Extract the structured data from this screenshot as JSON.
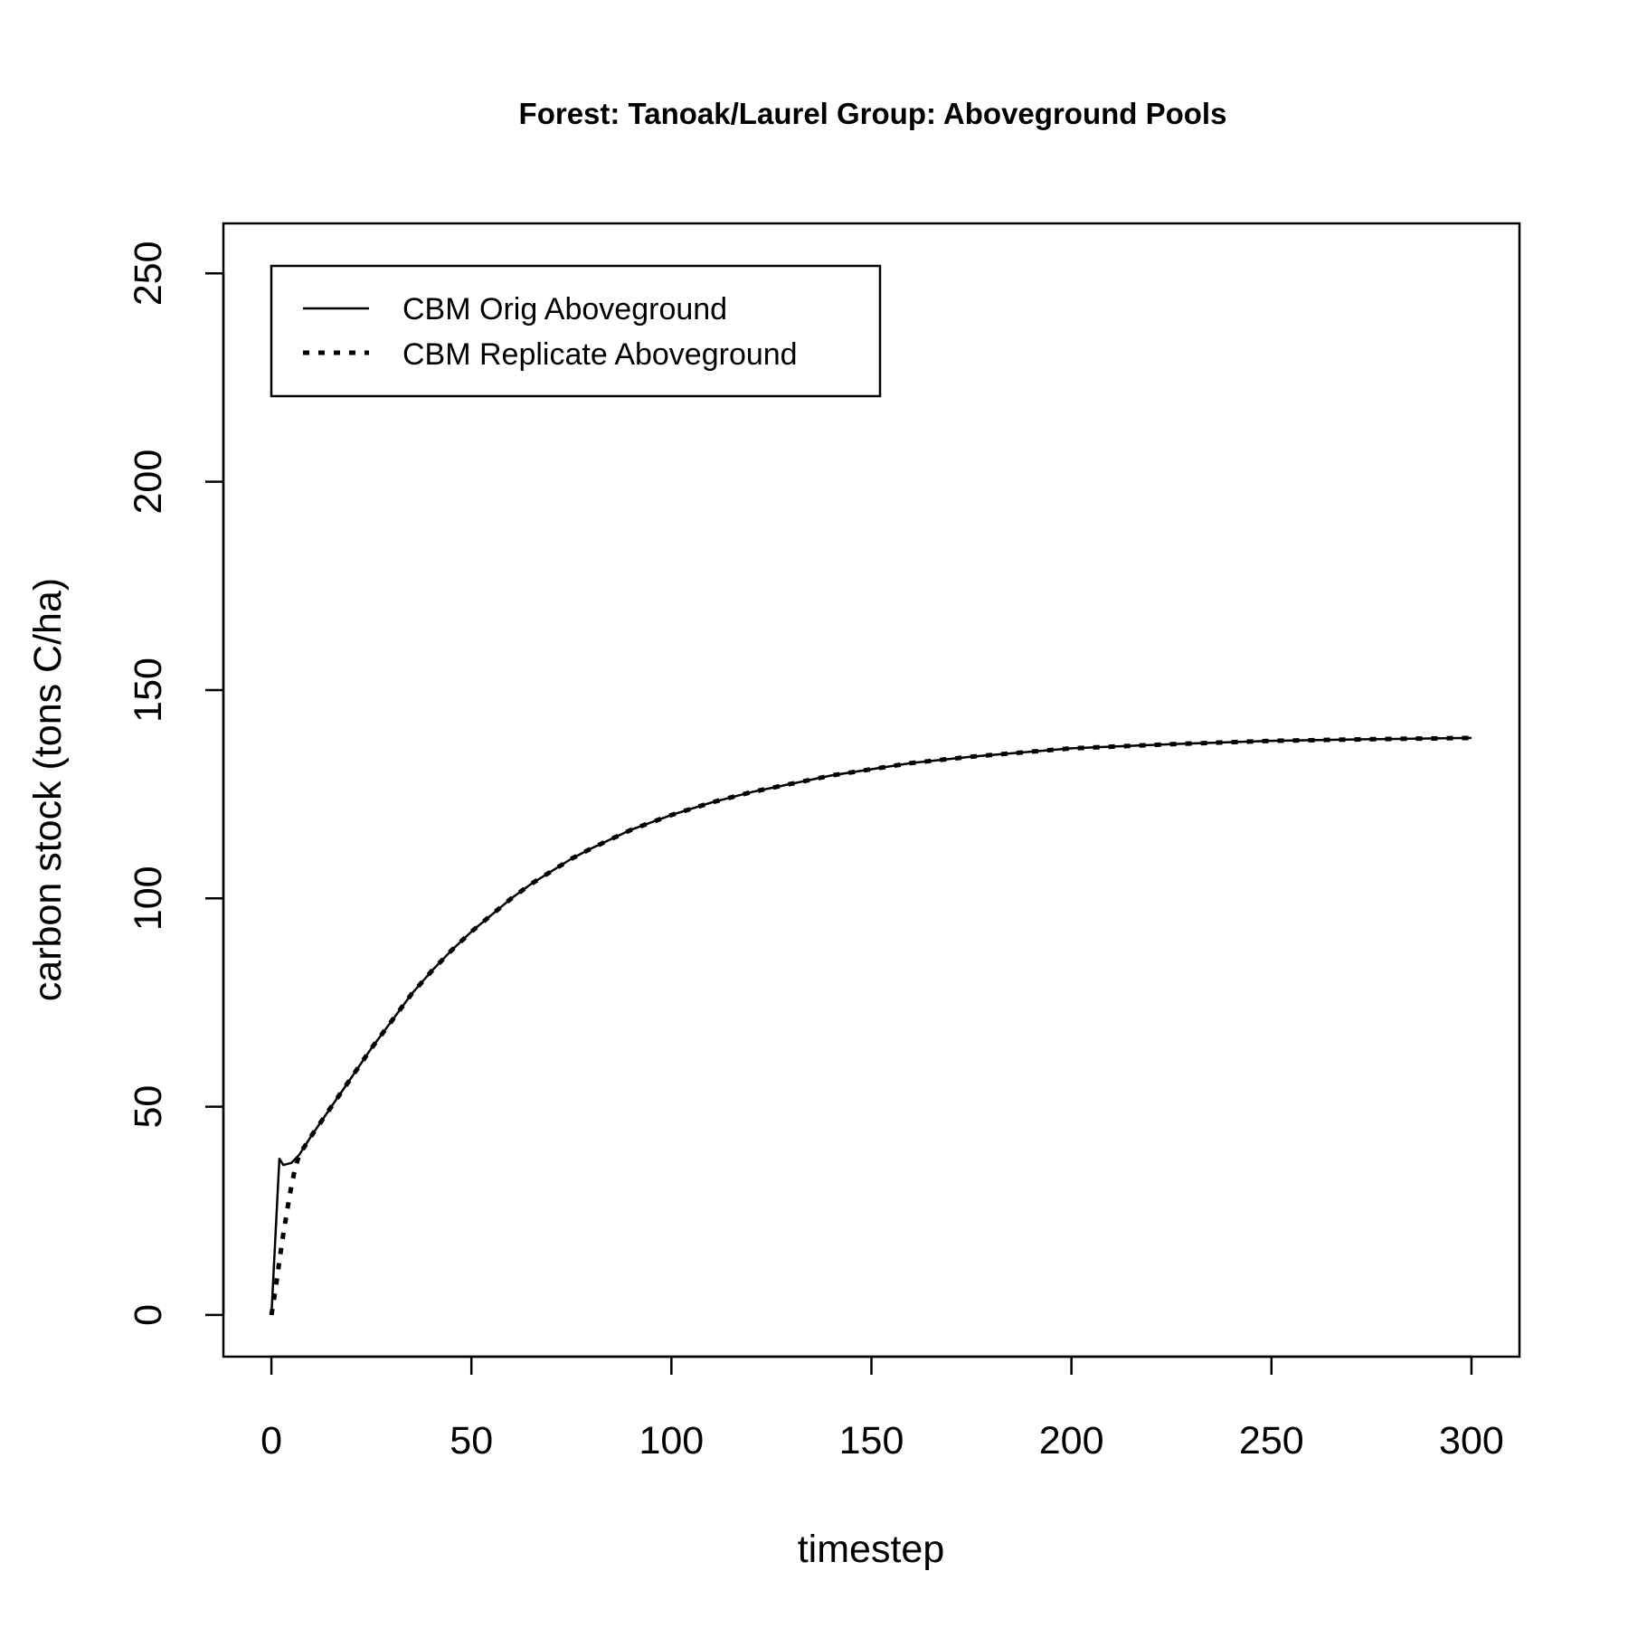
{
  "chart_data": {
    "type": "line",
    "title": "Forest: Tanoak/Laurel Group: Aboveground Pools",
    "xlabel": "timestep",
    "ylabel": "carbon stock (tons C/ha)",
    "xlim": [
      -12,
      312
    ],
    "ylim": [
      -10,
      262
    ],
    "xticks": [
      0,
      50,
      100,
      150,
      200,
      250,
      300
    ],
    "yticks": [
      0,
      50,
      100,
      150,
      200,
      250
    ],
    "grid": false,
    "legend_position": "top-left",
    "series": [
      {
        "name": "CBM Orig Aboveground",
        "line_style": "solid",
        "color": "#000000",
        "points": [
          [
            0,
            0
          ],
          [
            2,
            37.5
          ],
          [
            3,
            36.0
          ],
          [
            5,
            36.5
          ],
          [
            7,
            38.5
          ],
          [
            10,
            43
          ],
          [
            15,
            50
          ],
          [
            20,
            57
          ],
          [
            25,
            64
          ],
          [
            30,
            70.5
          ],
          [
            35,
            77
          ],
          [
            40,
            82.5
          ],
          [
            45,
            87.5
          ],
          [
            50,
            92
          ],
          [
            55,
            96
          ],
          [
            60,
            100
          ],
          [
            65,
            103.5
          ],
          [
            70,
            106.5
          ],
          [
            75,
            109.5
          ],
          [
            80,
            112
          ],
          [
            90,
            116.5
          ],
          [
            100,
            120
          ],
          [
            110,
            123
          ],
          [
            120,
            125.5
          ],
          [
            130,
            127.5
          ],
          [
            140,
            129.5
          ],
          [
            150,
            131
          ],
          [
            160,
            132.5
          ],
          [
            175,
            134
          ],
          [
            200,
            136
          ],
          [
            225,
            137
          ],
          [
            250,
            137.8
          ],
          [
            275,
            138.2
          ],
          [
            300,
            138.5
          ]
        ]
      },
      {
        "name": "CBM Replicate Aboveground",
        "line_style": "dotted",
        "color": "#000000",
        "points": [
          [
            0,
            0
          ],
          [
            1,
            6
          ],
          [
            2,
            13
          ],
          [
            3,
            19.5
          ],
          [
            4,
            25.5
          ],
          [
            5,
            31
          ],
          [
            6,
            35.5
          ],
          [
            7,
            38.5
          ],
          [
            10,
            43
          ],
          [
            15,
            50
          ],
          [
            20,
            57
          ],
          [
            25,
            64
          ],
          [
            30,
            70.5
          ],
          [
            35,
            77
          ],
          [
            40,
            82.5
          ],
          [
            45,
            87.5
          ],
          [
            50,
            92
          ],
          [
            55,
            96
          ],
          [
            60,
            100
          ],
          [
            65,
            103.5
          ],
          [
            70,
            106.5
          ],
          [
            75,
            109.5
          ],
          [
            80,
            112
          ],
          [
            90,
            116.5
          ],
          [
            100,
            120
          ],
          [
            110,
            123
          ],
          [
            120,
            125.5
          ],
          [
            130,
            127.5
          ],
          [
            140,
            129.5
          ],
          [
            150,
            131
          ],
          [
            160,
            132.5
          ],
          [
            175,
            134
          ],
          [
            200,
            136
          ],
          [
            225,
            137
          ],
          [
            250,
            137.8
          ],
          [
            275,
            138.2
          ],
          [
            300,
            138.5
          ]
        ]
      }
    ]
  }
}
